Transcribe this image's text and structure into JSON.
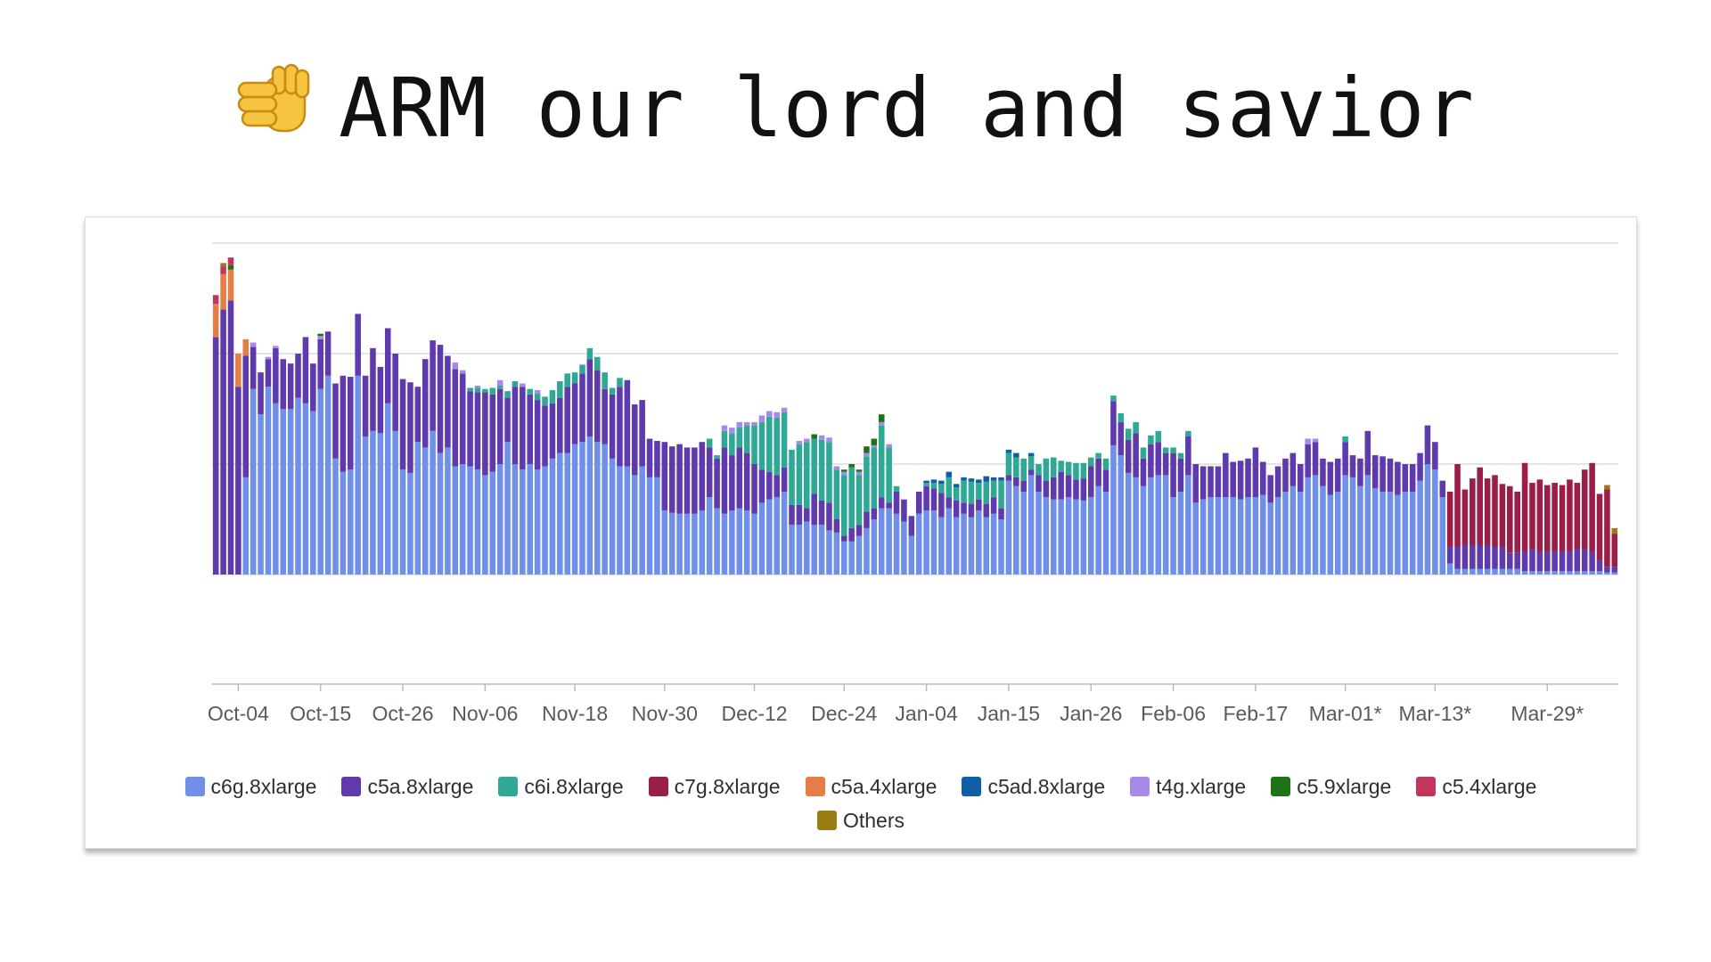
{
  "title": "ARM our lord and savior",
  "title_icon": "pointing-fist-icon",
  "chart_data": {
    "type": "bar",
    "stacked": true,
    "title": "",
    "xlabel": "",
    "ylabel": "",
    "ylim": [
      0,
      400
    ],
    "y_tick_values": [
      0,
      100,
      200,
      300
    ],
    "y_tick_labels_shown": false,
    "grid": true,
    "legend_position": "bottom",
    "x_tick_labels": [
      "Oct-04",
      "Oct-15",
      "Oct-26",
      "Nov-06",
      "Nov-18",
      "Nov-30",
      "Dec-12",
      "Dec-24",
      "Jan-04",
      "Jan-15",
      "Jan-26",
      "Feb-06",
      "Feb-17",
      "Mar-01*",
      "Mar-13*",
      "Mar-29*"
    ],
    "x_tick_label_positions": [
      3,
      14,
      25,
      36,
      48,
      60,
      72,
      84,
      95,
      106,
      117,
      128,
      139,
      151,
      163,
      178
    ],
    "legend": [
      {
        "name": "c6g.8xlarge",
        "color": "#6f8fe8"
      },
      {
        "name": "c5a.8xlarge",
        "color": "#5e3aad"
      },
      {
        "name": "c6i.8xlarge",
        "color": "#2fa996"
      },
      {
        "name": "c7g.8xlarge",
        "color": "#9b1e48"
      },
      {
        "name": "c5a.4xlarge",
        "color": "#e57d45"
      },
      {
        "name": "c5ad.8xlarge",
        "color": "#0f5fa8"
      },
      {
        "name": "t4g.xlarge",
        "color": "#a889e8"
      },
      {
        "name": "c5.9xlarge",
        "color": "#1e7317"
      },
      {
        "name": "c5.4xlarge",
        "color": "#c2355c"
      },
      {
        "name": "Others",
        "color": "#9a7d12"
      }
    ],
    "segment_keys": [
      "g",
      "a",
      "i",
      "r",
      "o",
      "d",
      "t",
      "n",
      "p",
      "x"
    ],
    "segment_series": {
      "g": "c6g.8xlarge",
      "a": "c5a.8xlarge",
      "i": "c6i.8xlarge",
      "r": "c7g.8xlarge",
      "o": "c5a.4xlarge",
      "d": "c5ad.8xlarge",
      "t": "t4g.xlarge",
      "n": "c5.9xlarge",
      "p": "c5.4xlarge",
      "x": "Others"
    },
    "bars": [
      {
        "a": 215,
        "o": 30,
        "p": 8
      },
      {
        "a": 240,
        "o": 32,
        "p": 7,
        "x": 3
      },
      {
        "a": 248,
        "o": 28,
        "p": 7,
        "n": 4
      },
      {
        "a": 170,
        "o": 30
      },
      {
        "g": 88,
        "a": 110,
        "o": 15
      },
      {
        "g": 168,
        "a": 38,
        "t": 4
      },
      {
        "g": 145,
        "a": 38
      },
      {
        "g": 170,
        "a": 25,
        "t": 2
      },
      {
        "g": 155,
        "a": 50,
        "t": 2
      },
      {
        "g": 150,
        "a": 45
      },
      {
        "g": 150,
        "a": 41
      },
      {
        "g": 160,
        "a": 40
      },
      {
        "g": 155,
        "a": 60
      },
      {
        "g": 148,
        "a": 43
      },
      {
        "g": 168,
        "a": 45,
        "t": 3,
        "n": 2
      },
      {
        "g": 180,
        "a": 40
      },
      {
        "g": 105,
        "a": 68
      },
      {
        "g": 93,
        "a": 87
      },
      {
        "g": 95,
        "a": 84
      },
      {
        "g": 180,
        "a": 56
      },
      {
        "g": 125,
        "a": 55
      },
      {
        "g": 130,
        "a": 75
      },
      {
        "g": 128,
        "a": 60
      },
      {
        "g": 155,
        "a": 68
      },
      {
        "g": 130,
        "a": 70
      },
      {
        "g": 95,
        "a": 82
      },
      {
        "g": 92,
        "a": 82
      },
      {
        "g": 120,
        "a": 50
      },
      {
        "g": 115,
        "a": 80
      },
      {
        "g": 130,
        "a": 82
      },
      {
        "g": 110,
        "a": 98
      },
      {
        "g": 115,
        "a": 83
      },
      {
        "g": 98,
        "a": 88,
        "t": 6
      },
      {
        "g": 100,
        "a": 82,
        "t": 3
      },
      {
        "g": 98,
        "a": 68,
        "i": 3
      },
      {
        "g": 95,
        "a": 70,
        "i": 4,
        "t": 2
      },
      {
        "g": 90,
        "a": 75,
        "i": 3
      },
      {
        "g": 93,
        "a": 70,
        "i": 6
      },
      {
        "g": 100,
        "a": 68,
        "i": 3,
        "t": 5
      },
      {
        "g": 120,
        "a": 40,
        "i": 6
      },
      {
        "g": 100,
        "a": 70,
        "i": 5
      },
      {
        "g": 95,
        "a": 75,
        "t": 3
      },
      {
        "g": 100,
        "a": 63,
        "i": 5
      },
      {
        "g": 95,
        "a": 63,
        "i": 6,
        "t": 3
      },
      {
        "g": 98,
        "a": 55,
        "i": 8
      },
      {
        "g": 105,
        "a": 50,
        "i": 12
      },
      {
        "g": 110,
        "a": 50,
        "i": 15
      },
      {
        "g": 110,
        "a": 60,
        "i": 12
      },
      {
        "g": 118,
        "a": 55,
        "i": 10
      },
      {
        "g": 120,
        "a": 62,
        "i": 8
      },
      {
        "g": 125,
        "a": 70,
        "i": 10
      },
      {
        "g": 120,
        "a": 65,
        "i": 12
      },
      {
        "g": 118,
        "a": 50,
        "i": 15
      },
      {
        "g": 105,
        "a": 58,
        "i": 6
      },
      {
        "g": 98,
        "a": 72,
        "i": 8
      },
      {
        "g": 98,
        "a": 78
      },
      {
        "g": 90,
        "a": 64
      },
      {
        "g": 98,
        "a": 60
      },
      {
        "g": 88,
        "a": 35
      },
      {
        "g": 88,
        "a": 33
      },
      {
        "g": 58,
        "a": 62
      },
      {
        "g": 56,
        "a": 60
      },
      {
        "g": 55,
        "a": 63
      },
      {
        "g": 55,
        "a": 60
      },
      {
        "g": 55,
        "a": 60
      },
      {
        "g": 58,
        "a": 62
      },
      {
        "g": 70,
        "a": 45,
        "i": 8
      },
      {
        "g": 60,
        "a": 45,
        "i": 3
      },
      {
        "g": 55,
        "a": 60,
        "i": 15,
        "t": 5
      },
      {
        "g": 58,
        "a": 50,
        "i": 20,
        "t": 5
      },
      {
        "g": 60,
        "a": 55,
        "i": 18,
        "t": 5
      },
      {
        "g": 58,
        "a": 52,
        "i": 25,
        "t": 3
      },
      {
        "g": 55,
        "a": 45,
        "i": 35,
        "t": 3
      },
      {
        "g": 65,
        "a": 30,
        "i": 43,
        "t": 6
      },
      {
        "g": 68,
        "a": 25,
        "i": 50,
        "t": 5
      },
      {
        "g": 70,
        "a": 20,
        "i": 52,
        "t": 5
      },
      {
        "g": 75,
        "a": 22,
        "i": 50,
        "t": 4
      },
      {
        "g": 45,
        "a": 18,
        "i": 50
      },
      {
        "g": 45,
        "a": 18,
        "i": 55,
        "t": 3
      },
      {
        "g": 48,
        "a": 12,
        "i": 60,
        "t": 3
      },
      {
        "g": 45,
        "a": 28,
        "i": 50,
        "n": 4
      },
      {
        "g": 45,
        "a": 22,
        "i": 55,
        "t": 4
      },
      {
        "g": 40,
        "a": 25,
        "i": 55,
        "t": 4
      },
      {
        "g": 38,
        "a": 12,
        "i": 45,
        "t": 3
      },
      {
        "g": 30,
        "a": 5,
        "i": 55,
        "t": 3,
        "n": 2
      },
      {
        "g": 30,
        "a": 12,
        "i": 55,
        "n": 3
      },
      {
        "g": 35,
        "a": 10,
        "i": 45,
        "t": 3,
        "n": 2
      },
      {
        "g": 42,
        "a": 15,
        "i": 50,
        "t": 3,
        "n": 6
      },
      {
        "g": 50,
        "a": 10,
        "i": 55,
        "t": 2,
        "n": 6
      },
      {
        "g": 60,
        "a": 10,
        "i": 65,
        "t": 3,
        "n": 7
      },
      {
        "g": 60,
        "a": 5,
        "i": 50,
        "t": 3
      },
      {
        "g": 55,
        "a": 20,
        "i": 5
      },
      {
        "g": 48,
        "a": 20
      },
      {
        "g": 35,
        "a": 18
      },
      {
        "g": 55,
        "a": 20
      },
      {
        "g": 58,
        "a": 22,
        "i": 3,
        "d": 2
      },
      {
        "g": 58,
        "a": 20,
        "i": 5,
        "d": 3
      },
      {
        "g": 52,
        "a": 22,
        "i": 8,
        "d": 3
      },
      {
        "g": 60,
        "a": 10,
        "i": 18,
        "d": 5
      },
      {
        "g": 52,
        "a": 15,
        "i": 12,
        "d": 3
      },
      {
        "g": 55,
        "a": 10,
        "i": 20,
        "d": 3
      },
      {
        "g": 52,
        "a": 12,
        "i": 20,
        "d": 3
      },
      {
        "g": 58,
        "a": 10,
        "i": 15,
        "d": 3
      },
      {
        "g": 52,
        "a": 12,
        "i": 20,
        "d": 5
      },
      {
        "g": 55,
        "a": 15,
        "i": 15,
        "d": 3
      },
      {
        "g": 50,
        "a": 10,
        "i": 25,
        "d": 3
      },
      {
        "g": 85,
        "a": 5,
        "i": 20,
        "d": 3
      },
      {
        "g": 80,
        "a": 8,
        "i": 18,
        "d": 4
      },
      {
        "g": 75,
        "a": 10,
        "i": 20
      },
      {
        "g": 90,
        "a": 5,
        "i": 12,
        "d": 3
      },
      {
        "g": 75,
        "a": 15,
        "i": 10
      },
      {
        "g": 70,
        "a": 15,
        "i": 20
      },
      {
        "g": 68,
        "a": 20,
        "i": 18
      },
      {
        "g": 68,
        "a": 25,
        "i": 10
      },
      {
        "g": 70,
        "a": 20,
        "i": 12
      },
      {
        "g": 68,
        "a": 18,
        "i": 15
      },
      {
        "g": 67,
        "a": 20,
        "i": 14
      },
      {
        "g": 70,
        "a": 28,
        "i": 8
      },
      {
        "g": 80,
        "a": 25,
        "i": 5
      },
      {
        "g": 75,
        "a": 20,
        "i": 10
      },
      {
        "g": 117,
        "a": 40,
        "i": 5
      },
      {
        "g": 108,
        "a": 30,
        "i": 8
      },
      {
        "g": 92,
        "a": 30,
        "i": 10
      },
      {
        "g": 88,
        "a": 40,
        "i": 10
      },
      {
        "g": 80,
        "a": 25,
        "i": 10
      },
      {
        "g": 88,
        "a": 30,
        "i": 8
      },
      {
        "g": 90,
        "a": 30,
        "i": 10
      },
      {
        "g": 90,
        "a": 20,
        "i": 5
      },
      {
        "g": 70,
        "a": 40,
        "i": 5
      },
      {
        "g": 75,
        "a": 30,
        "i": 5
      },
      {
        "g": 90,
        "a": 35,
        "i": 5
      },
      {
        "g": 65,
        "a": 35
      },
      {
        "g": 68,
        "a": 30
      },
      {
        "g": 70,
        "a": 28
      },
      {
        "g": 70,
        "a": 28
      },
      {
        "g": 70,
        "a": 40
      },
      {
        "g": 70,
        "a": 32
      },
      {
        "g": 68,
        "a": 35
      },
      {
        "g": 70,
        "a": 35
      },
      {
        "g": 70,
        "a": 45
      },
      {
        "g": 72,
        "a": 30
      },
      {
        "g": 65,
        "a": 25
      },
      {
        "g": 70,
        "a": 28
      },
      {
        "g": 75,
        "a": 30
      },
      {
        "g": 80,
        "a": 30
      },
      {
        "g": 75,
        "a": 25
      },
      {
        "g": 88,
        "a": 30,
        "t": 5
      },
      {
        "g": 90,
        "a": 30,
        "t": 3
      },
      {
        "g": 80,
        "a": 25
      },
      {
        "g": 72,
        "a": 30
      },
      {
        "g": 75,
        "a": 30
      },
      {
        "g": 90,
        "a": 30,
        "i": 5
      },
      {
        "g": 88,
        "a": 20
      },
      {
        "g": 80,
        "a": 25
      },
      {
        "g": 90,
        "a": 40
      },
      {
        "g": 78,
        "a": 30
      },
      {
        "g": 75,
        "a": 32
      },
      {
        "g": 75,
        "a": 30
      },
      {
        "g": 72,
        "a": 30
      },
      {
        "g": 75,
        "a": 25
      },
      {
        "g": 75,
        "a": 25
      },
      {
        "g": 85,
        "a": 25
      },
      {
        "g": 100,
        "a": 35
      },
      {
        "g": 95,
        "a": 25
      },
      {
        "g": 70,
        "a": 15
      },
      {
        "g": 10,
        "a": 15,
        "r": 50
      },
      {
        "g": 5,
        "a": 20,
        "r": 75
      },
      {
        "g": 5,
        "a": 22,
        "r": 50
      },
      {
        "g": 5,
        "a": 22,
        "r": 60
      },
      {
        "g": 5,
        "a": 22,
        "r": 70
      },
      {
        "g": 5,
        "a": 22,
        "r": 60
      },
      {
        "g": 5,
        "a": 20,
        "r": 65
      },
      {
        "g": 5,
        "a": 20,
        "r": 57
      },
      {
        "g": 5,
        "a": 15,
        "r": 60
      },
      {
        "g": 5,
        "a": 15,
        "r": 55
      },
      {
        "g": 3,
        "a": 18,
        "r": 80
      },
      {
        "g": 3,
        "a": 20,
        "r": 60
      },
      {
        "g": 3,
        "a": 18,
        "r": 65
      },
      {
        "g": 3,
        "a": 18,
        "r": 60
      },
      {
        "g": 3,
        "a": 18,
        "r": 62
      },
      {
        "g": 3,
        "a": 18,
        "r": 60
      },
      {
        "g": 3,
        "a": 18,
        "r": 65
      },
      {
        "g": 3,
        "a": 20,
        "r": 60
      },
      {
        "g": 3,
        "a": 20,
        "r": 72
      },
      {
        "g": 3,
        "a": 18,
        "r": 80
      },
      {
        "g": 3,
        "a": 10,
        "r": 60
      },
      {
        "g": 2,
        "a": 5,
        "r": 70,
        "x": 4
      },
      {
        "g": 2,
        "a": 5,
        "r": 30,
        "x": 5
      }
    ]
  }
}
